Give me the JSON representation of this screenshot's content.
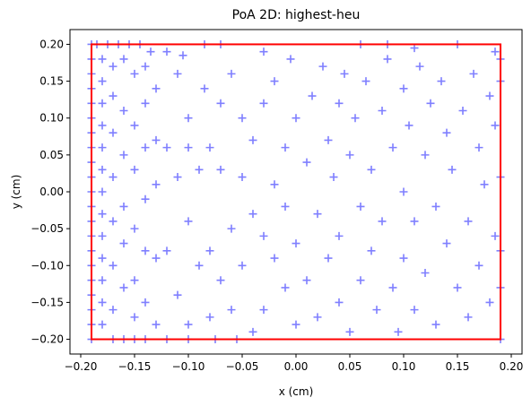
{
  "chart_data": {
    "type": "scatter",
    "title": "PoA 2D: highest-heu",
    "xlabel": "x (cm)",
    "ylabel": "y (cm)",
    "xlim": [
      -0.21,
      0.21
    ],
    "ylim": [
      -0.22,
      0.22
    ],
    "x_ticks": [
      "−0.20",
      "−0.15",
      "−0.10",
      "−0.05",
      "0.00",
      "0.05",
      "0.10",
      "0.15",
      "0.20"
    ],
    "x_tick_values": [
      -0.2,
      -0.15,
      -0.1,
      -0.05,
      0.0,
      0.05,
      0.1,
      0.15,
      0.2
    ],
    "y_ticks": [
      "−0.20",
      "−0.15",
      "−0.10",
      "−0.05",
      "0.00",
      "0.05",
      "0.10",
      "0.15",
      "0.20"
    ],
    "y_tick_values": [
      -0.2,
      -0.15,
      -0.1,
      -0.05,
      0.0,
      0.05,
      0.1,
      0.15,
      0.2
    ],
    "grid": false,
    "marker": "+",
    "marker_color": "#0000ff",
    "marker_alpha": 0.5,
    "boundary": {
      "color": "#ff0000",
      "x": [
        -0.19,
        0.19
      ],
      "y": [
        -0.2,
        0.2
      ]
    },
    "series": [
      {
        "points": [
          [
            -0.19,
            0.2
          ],
          [
            -0.185,
            0.2
          ],
          [
            -0.175,
            0.2
          ],
          [
            -0.165,
            0.2
          ],
          [
            -0.155,
            0.2
          ],
          [
            -0.145,
            0.2
          ],
          [
            -0.135,
            0.19
          ],
          [
            -0.12,
            0.19
          ],
          [
            -0.105,
            0.185
          ],
          [
            -0.085,
            0.2
          ],
          [
            -0.07,
            0.2
          ],
          [
            -0.03,
            0.19
          ],
          [
            0.06,
            0.2
          ],
          [
            0.085,
            0.2
          ],
          [
            0.11,
            0.195
          ],
          [
            0.15,
            0.2
          ],
          [
            0.185,
            0.19
          ],
          [
            -0.19,
            0.18
          ],
          [
            -0.19,
            0.16
          ],
          [
            -0.19,
            0.14
          ],
          [
            -0.19,
            0.12
          ],
          [
            -0.19,
            0.1
          ],
          [
            -0.19,
            0.08
          ],
          [
            -0.19,
            0.06
          ],
          [
            -0.19,
            0.04
          ],
          [
            -0.19,
            0.02
          ],
          [
            -0.19,
            0.0
          ],
          [
            -0.19,
            -0.02
          ],
          [
            -0.19,
            -0.04
          ],
          [
            -0.19,
            -0.06
          ],
          [
            -0.19,
            -0.08
          ],
          [
            -0.19,
            -0.1
          ],
          [
            -0.19,
            -0.12
          ],
          [
            -0.19,
            -0.14
          ],
          [
            -0.19,
            -0.16
          ],
          [
            -0.19,
            -0.18
          ],
          [
            -0.19,
            -0.2
          ],
          [
            -0.18,
            0.18
          ],
          [
            -0.18,
            0.15
          ],
          [
            -0.18,
            0.12
          ],
          [
            -0.18,
            0.09
          ],
          [
            -0.18,
            0.06
          ],
          [
            -0.18,
            0.03
          ],
          [
            -0.18,
            0.0
          ],
          [
            -0.18,
            -0.03
          ],
          [
            -0.18,
            -0.06
          ],
          [
            -0.18,
            -0.09
          ],
          [
            -0.18,
            -0.12
          ],
          [
            -0.18,
            -0.15
          ],
          [
            -0.18,
            -0.18
          ],
          [
            -0.17,
            0.17
          ],
          [
            -0.17,
            0.13
          ],
          [
            -0.17,
            0.08
          ],
          [
            -0.17,
            0.02
          ],
          [
            -0.17,
            -0.04
          ],
          [
            -0.17,
            -0.1
          ],
          [
            -0.17,
            -0.16
          ],
          [
            -0.17,
            -0.2
          ],
          [
            -0.16,
            0.18
          ],
          [
            -0.16,
            0.11
          ],
          [
            -0.16,
            0.05
          ],
          [
            -0.16,
            -0.02
          ],
          [
            -0.16,
            -0.07
          ],
          [
            -0.16,
            -0.13
          ],
          [
            -0.16,
            -0.2
          ],
          [
            -0.15,
            0.16
          ],
          [
            -0.15,
            0.09
          ],
          [
            -0.15,
            0.03
          ],
          [
            -0.15,
            -0.05
          ],
          [
            -0.15,
            -0.12
          ],
          [
            -0.15,
            -0.17
          ],
          [
            -0.15,
            -0.2
          ],
          [
            -0.14,
            0.17
          ],
          [
            -0.14,
            0.12
          ],
          [
            -0.14,
            0.06
          ],
          [
            -0.14,
            -0.01
          ],
          [
            -0.14,
            -0.08
          ],
          [
            -0.14,
            -0.15
          ],
          [
            -0.14,
            -0.2
          ],
          [
            -0.13,
            0.14
          ],
          [
            -0.13,
            0.07
          ],
          [
            -0.13,
            0.01
          ],
          [
            -0.13,
            -0.09
          ],
          [
            -0.13,
            -0.18
          ],
          [
            -0.12,
            0.06
          ],
          [
            -0.12,
            -0.08
          ],
          [
            -0.12,
            -0.2
          ],
          [
            -0.11,
            0.16
          ],
          [
            -0.11,
            0.02
          ],
          [
            -0.11,
            -0.14
          ],
          [
            -0.1,
            0.1
          ],
          [
            -0.1,
            0.06
          ],
          [
            -0.1,
            -0.04
          ],
          [
            -0.1,
            -0.18
          ],
          [
            -0.1,
            -0.2
          ],
          [
            -0.09,
            0.03
          ],
          [
            -0.09,
            -0.1
          ],
          [
            -0.085,
            0.14
          ],
          [
            -0.08,
            0.06
          ],
          [
            -0.08,
            -0.08
          ],
          [
            -0.08,
            -0.17
          ],
          [
            -0.075,
            -0.2
          ],
          [
            -0.07,
            0.12
          ],
          [
            -0.07,
            0.03
          ],
          [
            -0.07,
            -0.12
          ],
          [
            -0.06,
            0.16
          ],
          [
            -0.06,
            -0.05
          ],
          [
            -0.06,
            -0.16
          ],
          [
            -0.055,
            -0.2
          ],
          [
            -0.05,
            0.1
          ],
          [
            -0.05,
            0.02
          ],
          [
            -0.05,
            -0.1
          ],
          [
            -0.04,
            0.07
          ],
          [
            -0.04,
            -0.03
          ],
          [
            -0.04,
            -0.19
          ],
          [
            -0.03,
            0.12
          ],
          [
            -0.03,
            -0.06
          ],
          [
            -0.03,
            -0.16
          ],
          [
            -0.02,
            0.15
          ],
          [
            -0.02,
            0.01
          ],
          [
            -0.02,
            -0.09
          ],
          [
            -0.01,
            0.06
          ],
          [
            -0.01,
            -0.02
          ],
          [
            -0.01,
            -0.13
          ],
          [
            -0.005,
            0.18
          ],
          [
            0.0,
            0.1
          ],
          [
            0.0,
            -0.07
          ],
          [
            0.0,
            -0.18
          ],
          [
            0.01,
            0.04
          ],
          [
            0.01,
            -0.12
          ],
          [
            0.015,
            0.13
          ],
          [
            0.02,
            -0.03
          ],
          [
            0.02,
            -0.17
          ],
          [
            0.025,
            0.17
          ],
          [
            0.03,
            0.07
          ],
          [
            0.03,
            -0.09
          ],
          [
            0.035,
            0.02
          ],
          [
            0.04,
            0.12
          ],
          [
            0.04,
            -0.06
          ],
          [
            0.04,
            -0.15
          ],
          [
            0.045,
            0.16
          ],
          [
            0.05,
            0.05
          ],
          [
            0.05,
            -0.19
          ],
          [
            0.055,
            0.1
          ],
          [
            0.06,
            -0.02
          ],
          [
            0.06,
            -0.12
          ],
          [
            0.065,
            0.15
          ],
          [
            0.07,
            0.03
          ],
          [
            0.07,
            -0.08
          ],
          [
            0.075,
            -0.16
          ],
          [
            0.08,
            0.11
          ],
          [
            0.08,
            -0.04
          ],
          [
            0.085,
            0.18
          ],
          [
            0.09,
            0.06
          ],
          [
            0.09,
            -0.13
          ],
          [
            0.095,
            -0.19
          ],
          [
            0.1,
            0.14
          ],
          [
            0.1,
            0.0
          ],
          [
            0.1,
            -0.09
          ],
          [
            0.105,
            0.09
          ],
          [
            0.11,
            -0.04
          ],
          [
            0.11,
            -0.16
          ],
          [
            0.115,
            0.17
          ],
          [
            0.12,
            0.05
          ],
          [
            0.12,
            -0.11
          ],
          [
            0.125,
            0.12
          ],
          [
            0.13,
            -0.02
          ],
          [
            0.13,
            -0.18
          ],
          [
            0.135,
            0.15
          ],
          [
            0.14,
            0.08
          ],
          [
            0.14,
            -0.07
          ],
          [
            0.145,
            0.03
          ],
          [
            0.15,
            -0.13
          ],
          [
            0.155,
            0.11
          ],
          [
            0.16,
            -0.04
          ],
          [
            0.16,
            -0.17
          ],
          [
            0.165,
            0.16
          ],
          [
            0.17,
            0.06
          ],
          [
            0.17,
            -0.1
          ],
          [
            0.175,
            0.01
          ],
          [
            0.18,
            0.13
          ],
          [
            0.18,
            -0.15
          ],
          [
            0.185,
            0.09
          ],
          [
            0.185,
            -0.06
          ],
          [
            0.19,
            0.18
          ],
          [
            0.19,
            0.02
          ],
          [
            0.19,
            -0.08
          ],
          [
            0.19,
            -0.2
          ],
          [
            0.19,
            0.15
          ],
          [
            0.19,
            -0.13
          ]
        ]
      }
    ]
  }
}
